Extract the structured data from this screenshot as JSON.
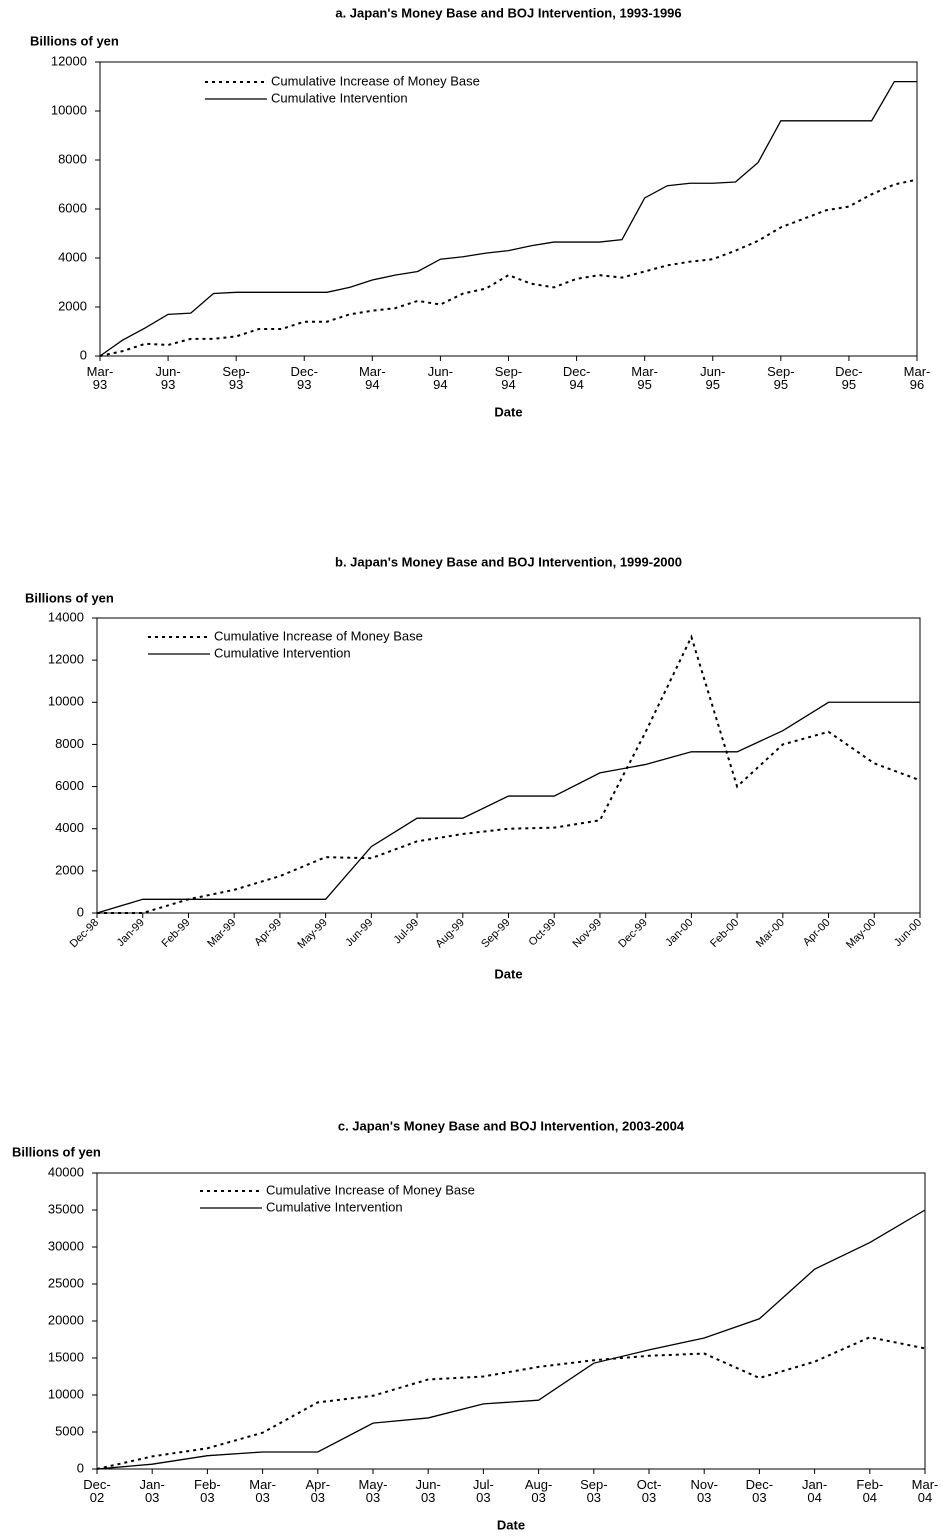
{
  "chart_data": [
    {
      "type": "line",
      "title": "a. Japan's Money Base and BOJ Intervention, 1993-1996",
      "ylabel": "Billions of yen",
      "xlabel": "Date",
      "categories": [
        "Mar-\n93",
        null,
        null,
        "Jun-\n93",
        null,
        null,
        "Sep-\n93",
        null,
        null,
        "Dec-\n93",
        null,
        null,
        "Mar-\n94",
        null,
        null,
        "Jun-\n94",
        null,
        null,
        "Sep-\n94",
        null,
        null,
        "Dec-\n94",
        null,
        null,
        "Mar-\n95",
        null,
        null,
        "Jun-\n95",
        null,
        null,
        "Sep-\n95",
        null,
        null,
        "Dec-\n95",
        null,
        null,
        "Mar-\n96"
      ],
      "series": [
        {
          "name": "Cumulative Increase of Money Base",
          "color": "#000000",
          "dash": true,
          "values": [
            0,
            200,
            500,
            450,
            700,
            700,
            800,
            1100,
            1100,
            1400,
            1400,
            1700,
            1850,
            1950,
            2250,
            2100,
            2550,
            2750,
            3300,
            2950,
            2800,
            3150,
            3300,
            3200,
            3450,
            3700,
            3850,
            3950,
            4300,
            4700,
            5250,
            5600,
            5950,
            6100,
            6600,
            7000,
            7200
          ]
        },
        {
          "name": "Cumulative Intervention",
          "color": "#000000",
          "dash": false,
          "values": [
            0,
            650,
            1150,
            1700,
            1750,
            2550,
            2600,
            2600,
            2600,
            2600,
            2600,
            2800,
            3100,
            3300,
            3450,
            3950,
            4050,
            4200,
            4300,
            4500,
            4650,
            4650,
            4650,
            4750,
            6450,
            6950,
            7050,
            7050,
            7100,
            7900,
            9600,
            9600,
            9600,
            9600,
            9600,
            11200,
            11200
          ]
        }
      ],
      "ylim": [
        0,
        12000
      ],
      "yticks": [
        0,
        2000,
        4000,
        6000,
        8000,
        10000,
        12000
      ],
      "legend": "upper left"
    },
    {
      "type": "line",
      "title": "b. Japan's Money Base and BOJ Intervention, 1999-2000",
      "ylabel": "Billions of yen",
      "xlabel": "Date",
      "categories": [
        "Dec-98",
        "Jan-99",
        "Feb-99",
        "Mar-99",
        "Apr-99",
        "May-99",
        "Jun-99",
        "Jul-99",
        "Aug-99",
        "Sep-99",
        "Oct-99",
        "Nov-99",
        "Dec-99",
        "Jan-00",
        "Feb-00",
        "Mar-00",
        "Apr-00",
        "May-00",
        "Jun-00"
      ],
      "xtick_rotation": 45,
      "series": [
        {
          "name": "Cumulative Increase of Money Base",
          "color": "#000000",
          "dash": true,
          "values": [
            0,
            0,
            650,
            1100,
            1750,
            2650,
            2600,
            3400,
            3750,
            4000,
            4050,
            4400,
            8600,
            13100,
            6000,
            8000,
            8600,
            7100,
            6300
          ]
        },
        {
          "name": "Cumulative Intervention",
          "color": "#000000",
          "dash": false,
          "values": [
            0,
            650,
            650,
            650,
            650,
            650,
            3150,
            4500,
            4500,
            5550,
            5550,
            6650,
            7050,
            7650,
            7650,
            8650,
            10000,
            10000,
            10000
          ]
        }
      ],
      "ylim": [
        0,
        14000
      ],
      "yticks": [
        0,
        2000,
        4000,
        6000,
        8000,
        10000,
        12000,
        14000
      ],
      "legend": "upper left"
    },
    {
      "type": "line",
      "title": "c. Japan's Money Base and BOJ Intervention, 2003-2004",
      "ylabel": "Billions of yen",
      "xlabel": "Date",
      "categories": [
        "Dec-\n02",
        "Jan-\n03",
        "Feb-\n03",
        "Mar-\n03",
        "Apr-\n03",
        "May-\n03",
        "Jun-\n03",
        "Jul-\n03",
        "Aug-\n03",
        "Sep-\n03",
        "Oct-\n03",
        "Nov-\n03",
        "Dec-\n03",
        "Jan-\n04",
        "Feb-\n04",
        "Mar-\n04"
      ],
      "series": [
        {
          "name": "Cumulative Increase of Money Base",
          "color": "#000000",
          "dash": true,
          "values": [
            0,
            1700,
            2800,
            4900,
            9000,
            9900,
            12100,
            12500,
            13800,
            14700,
            15300,
            15600,
            12300,
            14500,
            17800,
            16300
          ]
        },
        {
          "name": "Cumulative Intervention",
          "color": "#000000",
          "dash": false,
          "values": [
            0,
            650,
            1800,
            2300,
            2300,
            6200,
            6900,
            8800,
            9300,
            14300,
            16100,
            17700,
            20300,
            27000,
            30600,
            35000
          ]
        }
      ],
      "ylim": [
        0,
        40000
      ],
      "yticks": [
        0,
        5000,
        10000,
        15000,
        20000,
        25000,
        30000,
        35000,
        40000
      ],
      "legend": "upper left"
    }
  ]
}
